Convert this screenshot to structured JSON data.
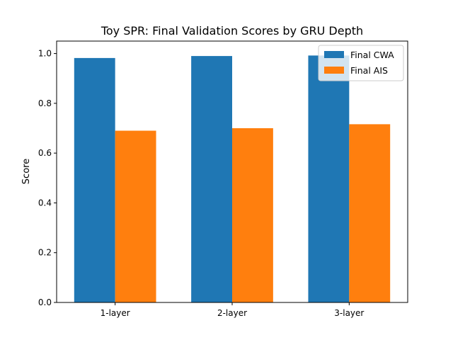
{
  "chart_data": {
    "type": "bar",
    "title": "Toy SPR: Final Validation Scores by GRU Depth",
    "xlabel": "",
    "ylabel": "Score",
    "categories": [
      "1-layer",
      "2-layer",
      "3-layer"
    ],
    "series": [
      {
        "name": "Final CWA",
        "values": [
          0.982,
          0.99,
          0.992
        ],
        "color": "#1f77b4"
      },
      {
        "name": "Final AIS",
        "values": [
          0.69,
          0.7,
          0.716
        ],
        "color": "#ff7f0e"
      }
    ],
    "ylim": [
      0,
      1.05
    ],
    "yticks": [
      "0.0",
      "0.2",
      "0.4",
      "0.6",
      "0.8",
      "1.0"
    ],
    "grid": false,
    "legend_position": "top-right"
  }
}
